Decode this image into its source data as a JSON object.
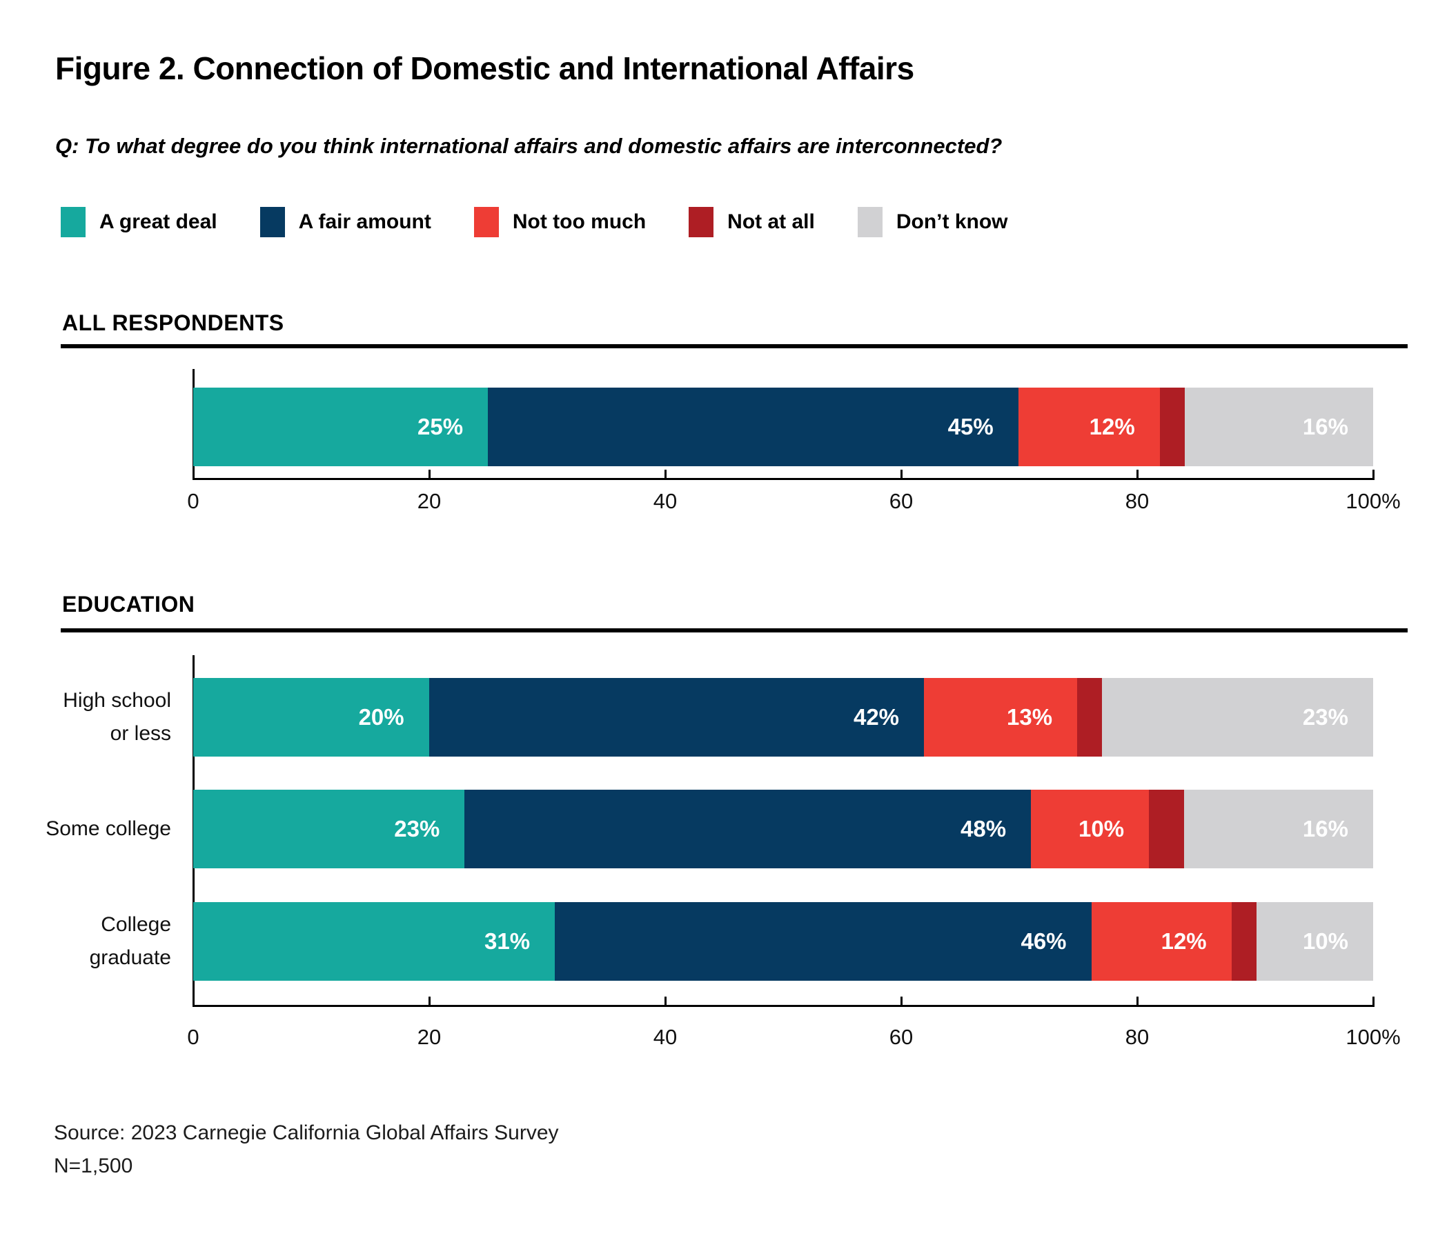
{
  "figure": {
    "title": "Figure 2. Connection of Domestic and International Affairs",
    "question": "Q: To what degree do you think international affairs and domestic affairs are interconnected?"
  },
  "colors": {
    "a_great_deal": "#16A99E",
    "a_fair_amount": "#063A61",
    "not_too_much": "#EE3D35",
    "not_at_all": "#AE1E24",
    "dont_know": "#D1D1D3",
    "text": "#000000"
  },
  "legend": {
    "items": [
      {
        "label": "A great deal",
        "color": "#16A99E"
      },
      {
        "label": "A fair amount",
        "color": "#063A61"
      },
      {
        "label": "Not too much",
        "color": "#EE3D35"
      },
      {
        "label": "Not at all",
        "color": "#AE1E24"
      },
      {
        "label": "Don’t know",
        "color": "#D1D1D3"
      }
    ]
  },
  "chart_data": [
    {
      "type": "bar",
      "orientation": "horizontal",
      "stacked": true,
      "section_heading": "ALL RESPONDENTS",
      "categories": [
        ""
      ],
      "series": [
        {
          "name": "A great deal",
          "color": "#16A99E",
          "labels": true,
          "values": [
            25
          ]
        },
        {
          "name": "A fair amount",
          "color": "#063A61",
          "labels": true,
          "values": [
            45
          ]
        },
        {
          "name": "Not too much",
          "color": "#EE3D35",
          "labels": true,
          "values": [
            12
          ]
        },
        {
          "name": "Not at all",
          "color": "#AE1E24",
          "labels": false,
          "values": [
            2
          ]
        },
        {
          "name": "Don’t know",
          "color": "#D1D1D3",
          "labels": true,
          "values": [
            16
          ]
        }
      ],
      "x_axis": {
        "range": [
          0,
          100
        ],
        "tick_labels": [
          "0",
          "20",
          "40",
          "60",
          "80",
          "100%"
        ]
      }
    },
    {
      "type": "bar",
      "orientation": "horizontal",
      "stacked": true,
      "section_heading": "EDUCATION",
      "categories": [
        "High school\nor less",
        "Some college",
        "College\ngraduate"
      ],
      "series": [
        {
          "name": "A great deal",
          "color": "#16A99E",
          "labels": true,
          "values": [
            20,
            23,
            31
          ]
        },
        {
          "name": "A fair amount",
          "color": "#063A61",
          "labels": true,
          "values": [
            42,
            48,
            46
          ]
        },
        {
          "name": "Not too much",
          "color": "#EE3D35",
          "labels": true,
          "values": [
            13,
            10,
            12
          ]
        },
        {
          "name": "Not at all",
          "color": "#AE1E24",
          "labels": false,
          "values": [
            2,
            3,
            1
          ]
        },
        {
          "name": "Don’t know",
          "color": "#D1D1D3",
          "labels": true,
          "values": [
            23,
            16,
            10
          ]
        }
      ],
      "x_axis": {
        "range": [
          0,
          100
        ],
        "tick_labels": [
          "0",
          "20",
          "40",
          "60",
          "80",
          "100%"
        ]
      }
    }
  ],
  "source": {
    "line1": "Source: 2023 Carnegie California Global Affairs Survey",
    "line2": "N=1,500"
  }
}
